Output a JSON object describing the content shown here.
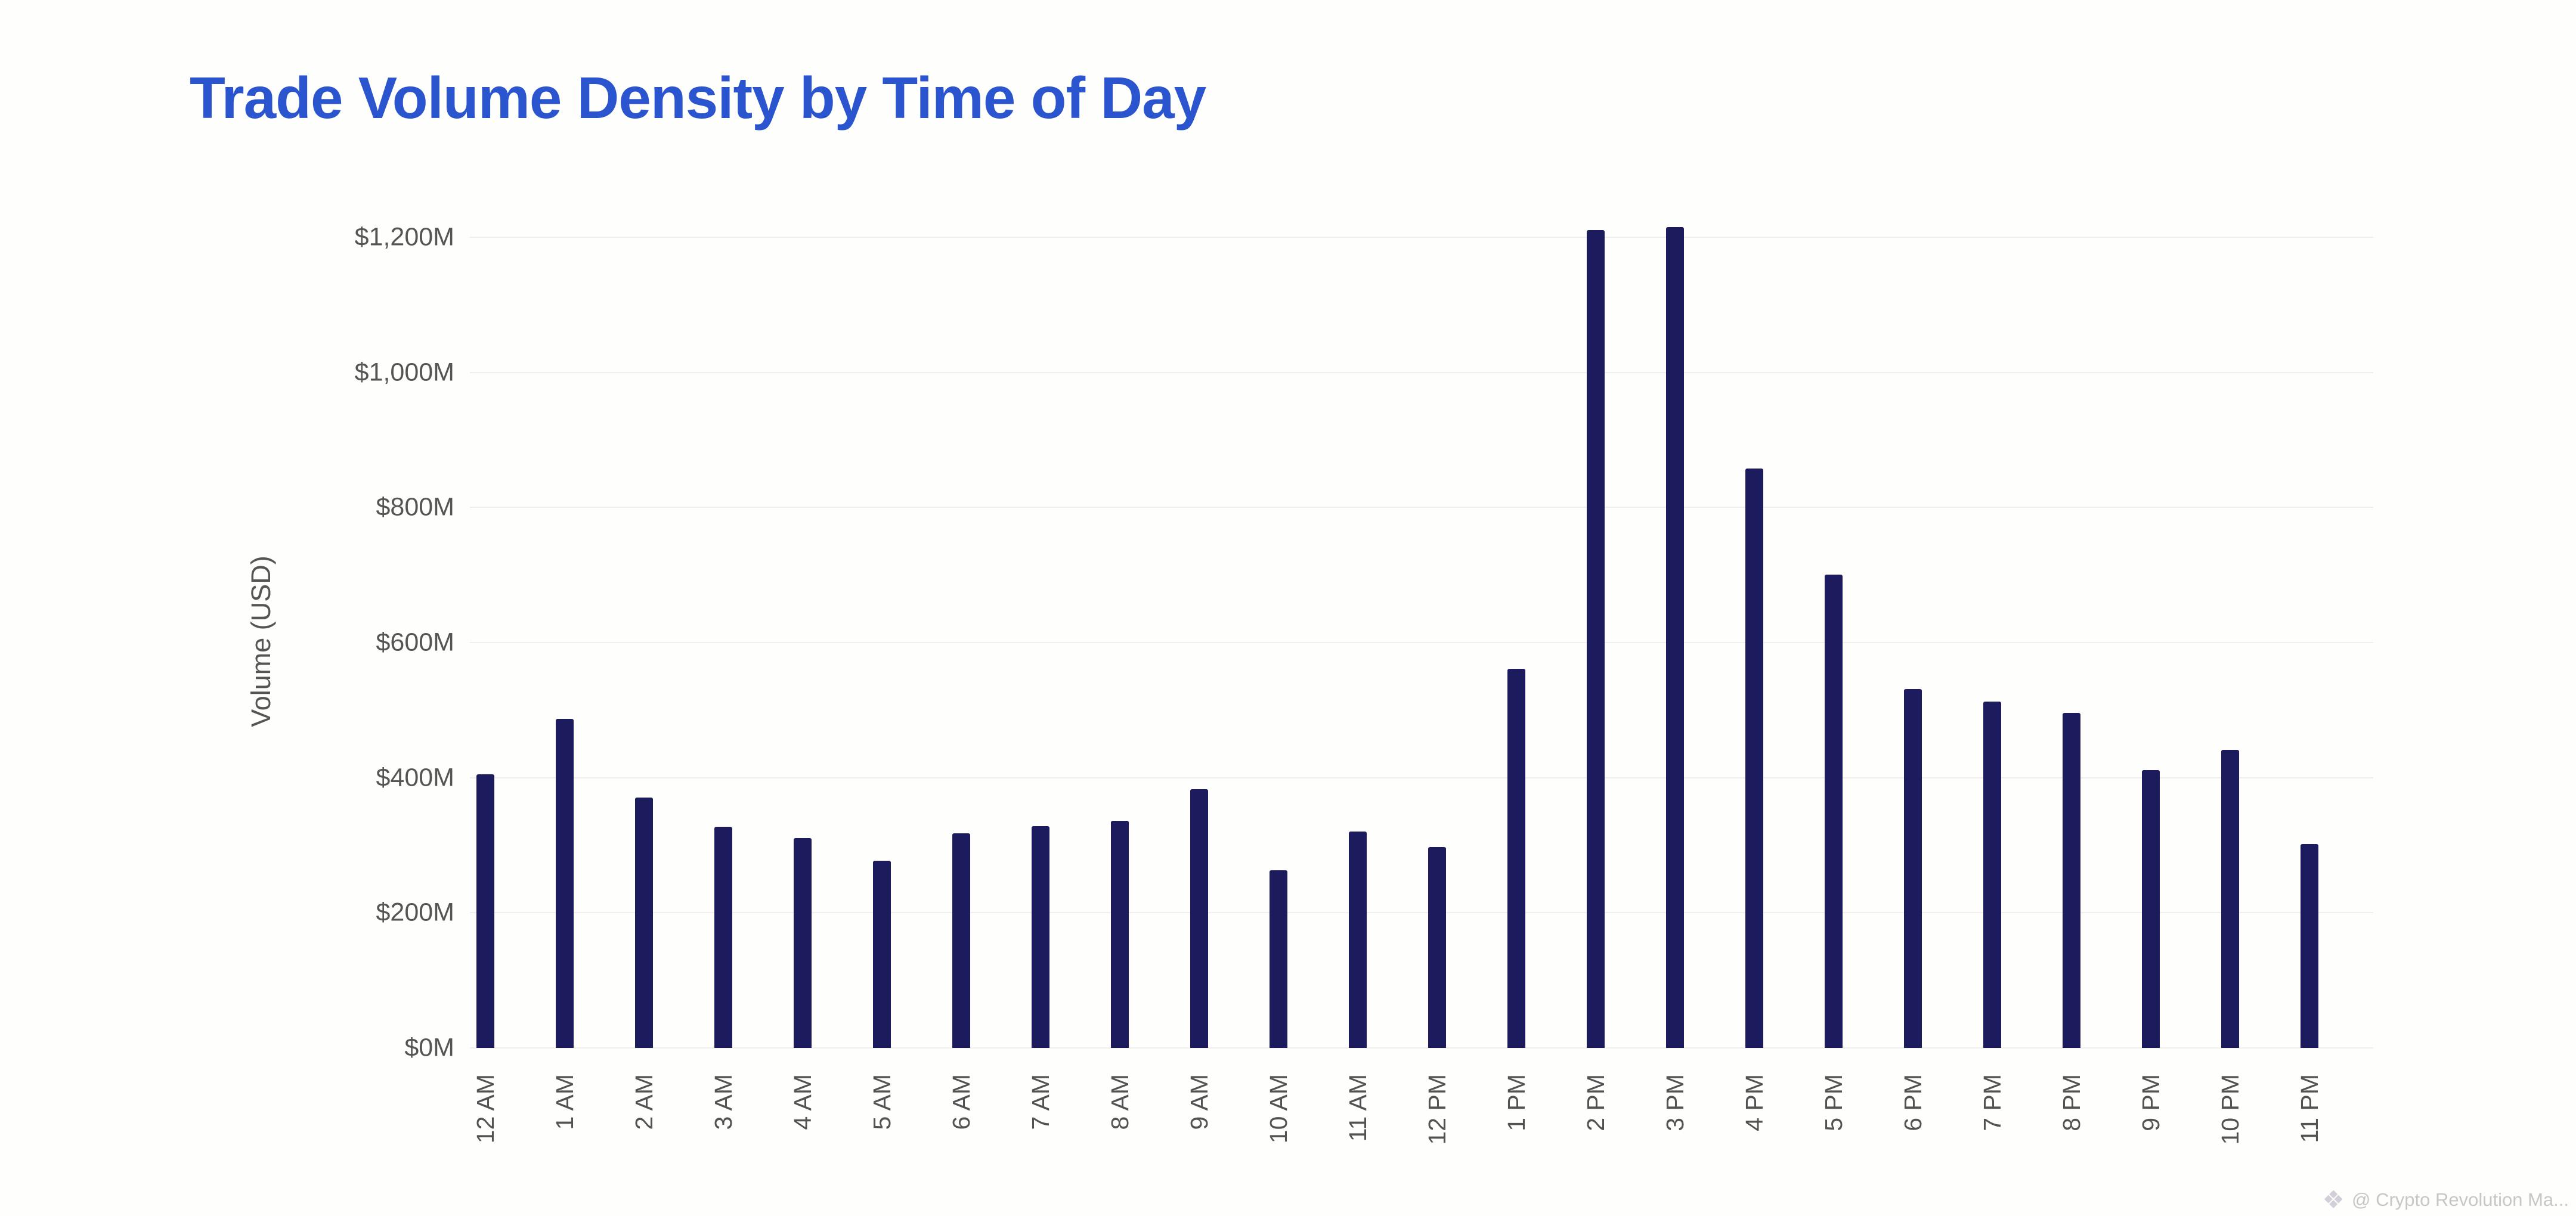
{
  "title": {
    "text": "Trade Volume Density by Time of Day",
    "color": "#2b54cf"
  },
  "watermark": {
    "logo_icon": "crypto-diamond-logo",
    "text": "@ Crypto Revolution Ma...",
    "color": "#c9c7c5"
  },
  "chart_data": {
    "type": "bar",
    "title": "Trade Volume Density by Time of Day",
    "xlabel": "",
    "ylabel": "Volume (USD)",
    "categories": [
      "12 AM",
      "1 AM",
      "2 AM",
      "3 AM",
      "4 AM",
      "5 AM",
      "6 AM",
      "7 AM",
      "8 AM",
      "9 AM",
      "10 AM",
      "11 AM",
      "12 PM",
      "1 PM",
      "2 PM",
      "3 PM",
      "4 PM",
      "5 PM",
      "6 PM",
      "7 PM",
      "8 PM",
      "9 PM",
      "10 PM",
      "11 PM"
    ],
    "values": [
      405,
      487,
      371,
      327,
      311,
      277,
      318,
      328,
      336,
      383,
      263,
      320,
      297,
      561,
      1211,
      1215,
      858,
      701,
      531,
      513,
      496,
      411,
      441,
      302
    ],
    "values_unit": "M USD",
    "yticks": {
      "values": [
        0,
        200,
        400,
        600,
        800,
        1000,
        1200
      ],
      "labels": [
        "$0M",
        "$200M",
        "$400M",
        "$600M",
        "$800M",
        "$1,000M",
        "$1,200M"
      ]
    },
    "ylim": [
      0,
      1200
    ],
    "grid": true,
    "legend": "none",
    "bar_color": "#1b1b5e",
    "gridline_color": "#f1efed",
    "axis_text_color": "#555553"
  }
}
